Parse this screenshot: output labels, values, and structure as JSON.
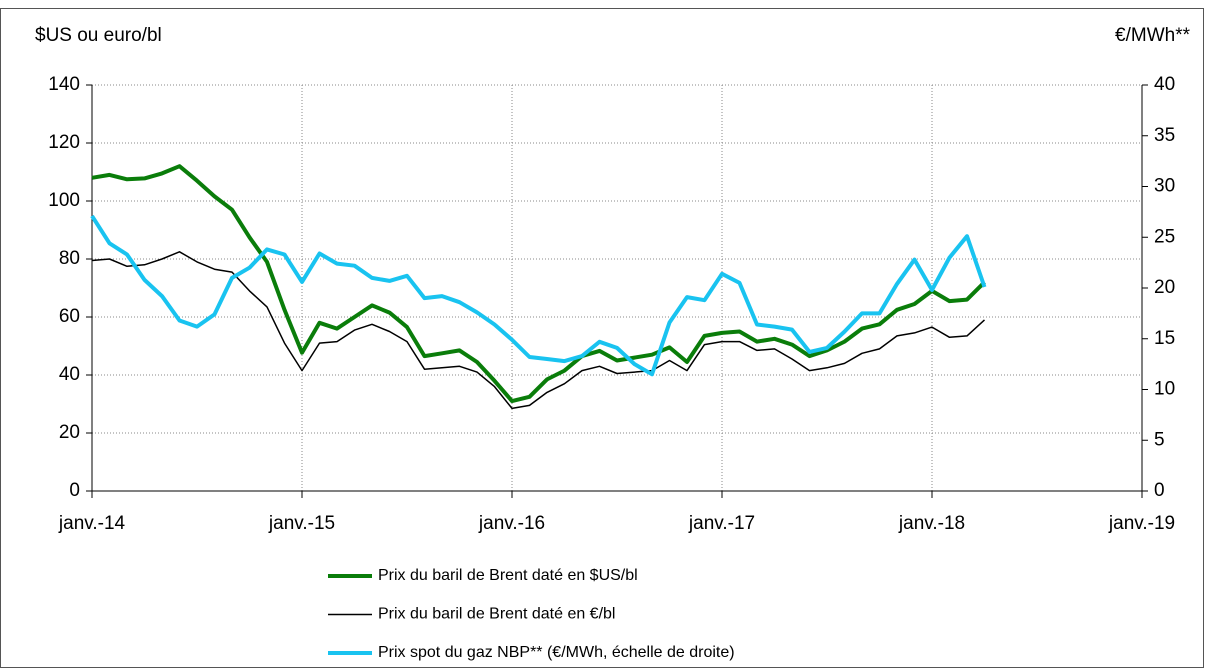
{
  "chart_data": {
    "type": "line",
    "y_label": "$US ou euro/bl",
    "y2_label": "€/MWh**",
    "x": [
      "2014-01",
      "2014-02",
      "2014-03",
      "2014-04",
      "2014-05",
      "2014-06",
      "2014-07",
      "2014-08",
      "2014-09",
      "2014-10",
      "2014-11",
      "2014-12",
      "2015-01",
      "2015-02",
      "2015-03",
      "2015-04",
      "2015-05",
      "2015-06",
      "2015-07",
      "2015-08",
      "2015-09",
      "2015-10",
      "2015-11",
      "2015-12",
      "2016-01",
      "2016-02",
      "2016-03",
      "2016-04",
      "2016-05",
      "2016-06",
      "2016-07",
      "2016-08",
      "2016-09",
      "2016-10",
      "2016-11",
      "2016-12",
      "2017-01",
      "2017-02",
      "2017-03",
      "2017-04",
      "2017-05",
      "2017-06",
      "2017-07",
      "2017-08",
      "2017-09",
      "2017-10",
      "2017-11",
      "2017-12",
      "2018-01",
      "2018-02",
      "2018-03",
      "2018-04"
    ],
    "xlim": [
      "2014-01",
      "2019-01"
    ],
    "xticks": [
      {
        "value": "2014-01",
        "label": "janv.-14"
      },
      {
        "value": "2015-01",
        "label": "janv.-15"
      },
      {
        "value": "2016-01",
        "label": "janv.-16"
      },
      {
        "value": "2017-01",
        "label": "janv.-17"
      },
      {
        "value": "2018-01",
        "label": "janv.-18"
      },
      {
        "value": "2019-01",
        "label": "janv.-19"
      }
    ],
    "ylim": [
      0,
      140
    ],
    "yticks": [
      0,
      20,
      40,
      60,
      80,
      100,
      120,
      140
    ],
    "y2lim": [
      0,
      40
    ],
    "y2ticks": [
      0,
      5,
      10,
      15,
      20,
      25,
      30,
      35,
      40
    ],
    "grid": true,
    "series": [
      {
        "name": "Prix du baril de Brent daté en $US/bl",
        "color": "#0a7d0a",
        "width": 4,
        "values": [
          108,
          109,
          107.5,
          107.8,
          109.5,
          112,
          107,
          101.6,
          97,
          87.5,
          79,
          62.5,
          47.7,
          58,
          56,
          60,
          64,
          61.5,
          56.5,
          46.5,
          47.5,
          48.5,
          44.5,
          38,
          31,
          32.5,
          38.5,
          41.5,
          46.5,
          48.3,
          45,
          46,
          47,
          49.5,
          44.5,
          53.5,
          54.5,
          55,
          51.5,
          52.5,
          50.5,
          46.5,
          48.5,
          51.5,
          56,
          57.5,
          62.5,
          64.5,
          69,
          65.5,
          66,
          72
        ]
      },
      {
        "name": "Prix du baril de Brent daté en €/bl",
        "color": "#000000",
        "width": 1.5,
        "values": [
          79.5,
          80,
          77.5,
          78,
          80,
          82.5,
          79,
          76.5,
          75.5,
          69,
          63.5,
          51,
          41.5,
          51,
          51.5,
          55.5,
          57.5,
          55,
          51.5,
          42,
          42.5,
          43,
          41,
          36,
          28.5,
          29.5,
          34,
          37,
          41.5,
          43,
          40.5,
          41,
          41.5,
          45,
          41.5,
          50.5,
          51.5,
          51.5,
          48.5,
          49,
          45.5,
          41.5,
          42.5,
          44,
          47.5,
          49,
          53.5,
          54.5,
          56.5,
          53,
          53.5,
          59
        ]
      },
      {
        "name": "Prix spot du gaz NBP** (€/MWh, échelle de droite)",
        "color": "#19c3f0",
        "width": 4,
        "axis": "y2",
        "values": [
          27.1,
          24.4,
          23.3,
          20.8,
          19.2,
          16.8,
          16.2,
          17.4,
          21,
          22,
          23.8,
          23.3,
          20.6,
          23.4,
          22.4,
          22.2,
          21,
          20.7,
          21.2,
          19,
          19.2,
          18.6,
          17.6,
          16.4,
          14.9,
          13.2,
          13,
          12.8,
          13.3,
          14.7,
          14.1,
          12.5,
          11.5,
          16.6,
          19.1,
          18.8,
          21.4,
          20.5,
          16.4,
          16.2,
          15.9,
          13.7,
          14.1,
          15.7,
          17.5,
          17.5,
          20.4,
          22.8,
          19.8,
          23,
          25.1,
          20.1
        ]
      }
    ]
  }
}
